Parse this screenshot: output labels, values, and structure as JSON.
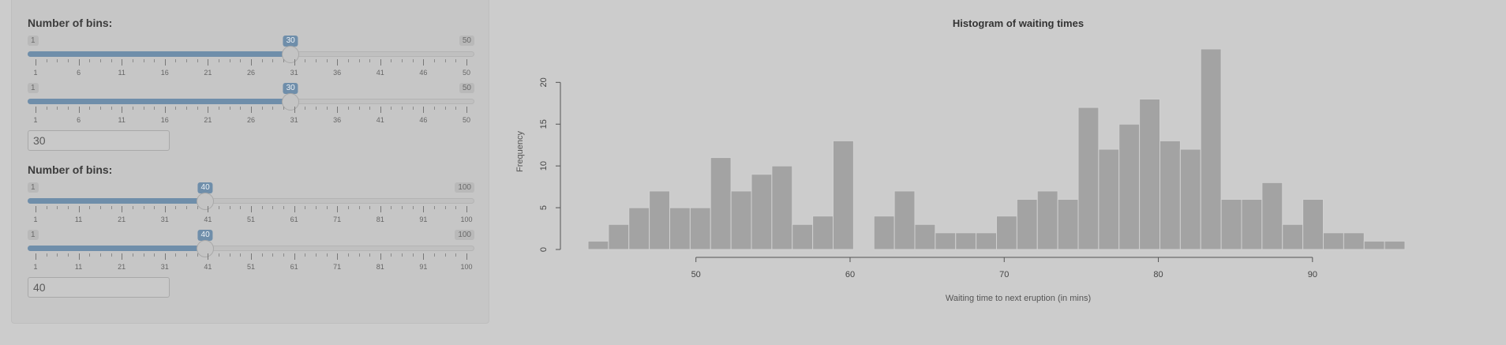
{
  "sidebar": {
    "group1": {
      "label": "Number of bins:",
      "slider_a": {
        "min_label": "1",
        "max_label": "50",
        "value_label": "30",
        "min": 1,
        "max": 50,
        "value": 30,
        "ticks": [
          "1",
          "6",
          "11",
          "16",
          "21",
          "26",
          "31",
          "36",
          "41",
          "46",
          "50"
        ]
      },
      "slider_b": {
        "min_label": "1",
        "max_label": "50",
        "value_label": "30",
        "min": 1,
        "max": 50,
        "value": 30,
        "ticks": [
          "1",
          "6",
          "11",
          "16",
          "21",
          "26",
          "31",
          "36",
          "41",
          "46",
          "50"
        ]
      },
      "input_value": "30"
    },
    "group2": {
      "label": "Number of bins:",
      "slider_a": {
        "min_label": "1",
        "max_label": "100",
        "value_label": "40",
        "min": 1,
        "max": 100,
        "value": 40,
        "ticks": [
          "1",
          "11",
          "21",
          "31",
          "41",
          "51",
          "61",
          "71",
          "81",
          "91",
          "100"
        ]
      },
      "slider_b": {
        "min_label": "1",
        "max_label": "100",
        "value_label": "40",
        "min": 1,
        "max": 100,
        "value": 40,
        "ticks": [
          "1",
          "11",
          "21",
          "31",
          "41",
          "51",
          "61",
          "71",
          "81",
          "91",
          "100"
        ]
      },
      "input_value": "40"
    }
  },
  "colors": {
    "accent": "#6f8eaa",
    "bar_fill": "#a3a3a3",
    "bar_stroke": "#d0d0d0"
  },
  "chart_data": {
    "type": "bar",
    "title": "Histogram of waiting times",
    "xlabel": "Waiting time to next eruption (in mins)",
    "ylabel": "Frequency",
    "xlim": [
      43,
      96
    ],
    "ylim": [
      0,
      24
    ],
    "x_ticks": [
      50,
      60,
      70,
      80,
      90
    ],
    "y_ticks": [
      0,
      5,
      10,
      15,
      20
    ],
    "bin_width": 1.325,
    "bin_start": 43,
    "values": [
      1,
      3,
      5,
      7,
      5,
      5,
      11,
      7,
      9,
      10,
      3,
      4,
      13,
      0,
      4,
      7,
      3,
      2,
      2,
      2,
      4,
      6,
      7,
      6,
      17,
      12,
      15,
      18,
      13,
      12,
      24,
      6,
      6,
      8,
      3,
      6,
      2,
      2,
      1,
      1
    ]
  }
}
